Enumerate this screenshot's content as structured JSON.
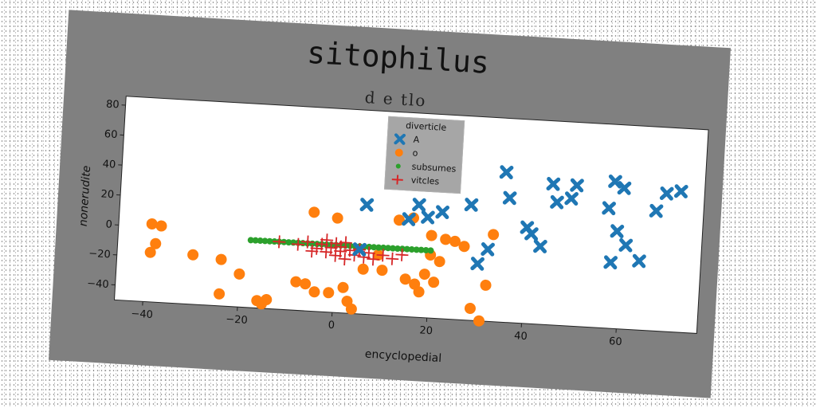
{
  "chart_data": {
    "type": "scatter",
    "title": "sitophilus",
    "subtitle": "d e tlo",
    "xlabel": "encyclopedial",
    "ylabel": "nonerudite",
    "xlim": [
      -46,
      77
    ],
    "ylim": [
      -50,
      86
    ],
    "xticks": [
      -40,
      -20,
      0,
      20,
      40,
      60
    ],
    "yticks": [
      -40,
      -20,
      0,
      20,
      40,
      60,
      80
    ],
    "grid": false,
    "legend": {
      "title": "diverticle",
      "placement": "top-center"
    },
    "series": [
      {
        "name": "A",
        "marker": "X",
        "color": "#1f77b4",
        "points": [
          [
            6,
            23
          ],
          [
            15,
            15
          ],
          [
            17,
            25
          ],
          [
            19,
            17
          ],
          [
            22,
            21
          ],
          [
            28,
            27
          ],
          [
            30,
            -12
          ],
          [
            32,
            -2
          ],
          [
            35,
            50
          ],
          [
            36,
            33
          ],
          [
            40,
            14
          ],
          [
            41,
            10
          ],
          [
            43,
            2
          ],
          [
            45,
            44
          ],
          [
            46,
            32
          ],
          [
            49,
            35
          ],
          [
            50,
            44
          ],
          [
            57,
            30
          ],
          [
            58,
            48
          ],
          [
            58,
            -6
          ],
          [
            59,
            15
          ],
          [
            60,
            44
          ],
          [
            61,
            6
          ],
          [
            64,
            -4
          ],
          [
            67,
            30
          ],
          [
            69,
            42
          ],
          [
            72,
            44
          ],
          [
            5,
            -7
          ]
        ]
      },
      {
        "name": "o",
        "marker": "o",
        "color": "#ff7f0e",
        "points": [
          [
            -39,
            2
          ],
          [
            -38,
            -11
          ],
          [
            -37,
            1
          ],
          [
            -39,
            -17
          ],
          [
            -30,
            -17
          ],
          [
            -24,
            -19
          ],
          [
            -24,
            -42
          ],
          [
            -20,
            -28
          ],
          [
            -16,
            -45
          ],
          [
            -14,
            -44
          ],
          [
            -15,
            -47
          ],
          [
            -8,
            -31
          ],
          [
            -6,
            -32
          ],
          [
            -4,
            -37
          ],
          [
            -5,
            16
          ],
          [
            -1,
            -37
          ],
          [
            2,
            -33
          ],
          [
            3,
            -42
          ],
          [
            4,
            -47
          ],
          [
            6,
            -20
          ],
          [
            10,
            -20
          ],
          [
            15,
            -25
          ],
          [
            16,
            16
          ],
          [
            17,
            -28
          ],
          [
            18,
            -33
          ],
          [
            19,
            -21
          ],
          [
            20,
            -8
          ],
          [
            21,
            -26
          ],
          [
            22,
            -12
          ],
          [
            20,
            5
          ],
          [
            23,
            3
          ],
          [
            25,
            2
          ],
          [
            27,
            -1
          ],
          [
            29,
            -42
          ],
          [
            31,
            -50
          ],
          [
            32,
            -26
          ],
          [
            33,
            8
          ],
          [
            0,
            13
          ],
          [
            9,
            -10
          ],
          [
            13,
            14
          ]
        ]
      },
      {
        "name": "subsumes",
        "marker": ".",
        "color": "#2ca02c",
        "points": [
          [
            -18,
            -5
          ],
          [
            -16,
            -5
          ],
          [
            -14,
            -5
          ],
          [
            -12,
            -5
          ],
          [
            -10,
            -5
          ],
          [
            -8,
            -5
          ],
          [
            -6,
            -5
          ],
          [
            -4,
            -5
          ],
          [
            -2,
            -5
          ],
          [
            0,
            -5
          ],
          [
            2,
            -5
          ],
          [
            4,
            -5
          ],
          [
            6,
            -5
          ],
          [
            8,
            -5
          ],
          [
            10,
            -5
          ],
          [
            12,
            -5
          ],
          [
            14,
            -5
          ],
          [
            16,
            -5
          ],
          [
            18,
            -5
          ],
          [
            20,
            -5
          ],
          [
            -17,
            -5
          ],
          [
            -15,
            -5
          ],
          [
            -13,
            -5
          ],
          [
            -11,
            -5
          ],
          [
            -9,
            -5
          ],
          [
            -7,
            -5
          ],
          [
            -5,
            -5
          ],
          [
            -3,
            -5
          ],
          [
            -1,
            -5
          ],
          [
            1,
            -5
          ],
          [
            3,
            -5
          ],
          [
            5,
            -5
          ],
          [
            7,
            -5
          ],
          [
            9,
            -5
          ],
          [
            11,
            -5
          ],
          [
            13,
            -5
          ],
          [
            15,
            -5
          ],
          [
            17,
            -5
          ],
          [
            19,
            -5
          ]
        ]
      },
      {
        "name": "vitcles",
        "marker": "+",
        "color": "#d62728",
        "points": [
          [
            -12,
            -5
          ],
          [
            -8,
            -6
          ],
          [
            -6,
            -4
          ],
          [
            -4,
            -8
          ],
          [
            -3,
            -5
          ],
          [
            -2,
            -10
          ],
          [
            -1,
            -7
          ],
          [
            0,
            -12
          ],
          [
            0,
            -4
          ],
          [
            1,
            -9
          ],
          [
            1,
            -6
          ],
          [
            2,
            -14
          ],
          [
            2,
            -3
          ],
          [
            3,
            -8
          ],
          [
            4,
            -11
          ],
          [
            5,
            -7
          ],
          [
            6,
            -12
          ],
          [
            7,
            -9
          ],
          [
            8,
            -13
          ],
          [
            10,
            -10
          ],
          [
            12,
            -12
          ],
          [
            14,
            -9
          ],
          [
            -5,
            -10
          ],
          [
            -2,
            -2
          ]
        ]
      }
    ]
  }
}
